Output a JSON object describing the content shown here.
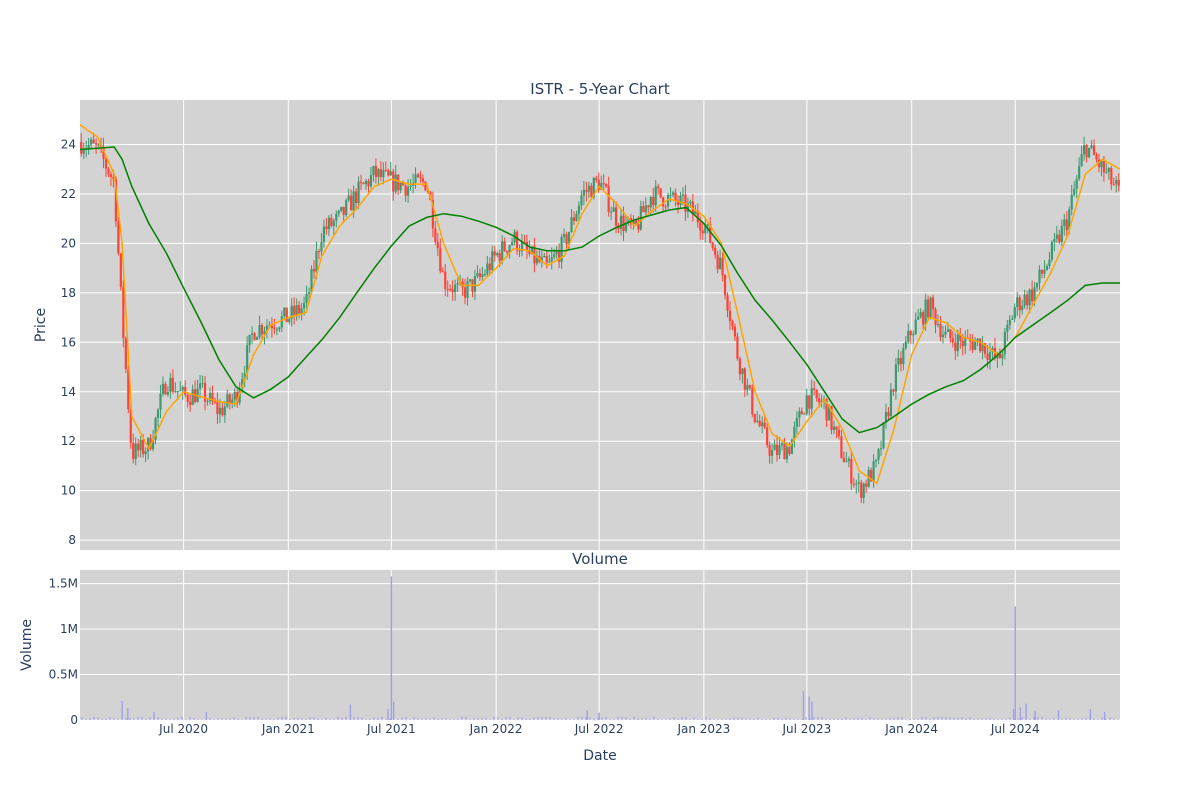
{
  "chart_data": [
    {
      "type": "candlestick",
      "title": "ISTR - 5-Year Chart",
      "xlabel": "",
      "ylabel": "Price",
      "ylim": [
        7.6,
        25.8
      ],
      "yticks": [
        8,
        10,
        12,
        14,
        16,
        18,
        20,
        22,
        24
      ],
      "xlim": [
        "2020-01-01",
        "2025-01-01"
      ],
      "xticks": [
        "2020-07-01",
        "2021-01-01",
        "2021-07-01",
        "2022-01-01",
        "2022-07-01",
        "2023-01-01",
        "2023-07-01",
        "2024-01-01",
        "2024-07-01"
      ],
      "grid": true,
      "plot_bg": "#d3d3d3",
      "colors": {
        "up": "#3d9970",
        "down": "#ff4136",
        "ma_short": "#ffa500",
        "ma_long": "#008000"
      },
      "series": [
        {
          "kind": "close",
          "x": [
            "2020-01-01",
            "2020-02-01",
            "2020-03-01",
            "2020-03-15",
            "2020-04-01",
            "2020-05-01",
            "2020-06-01",
            "2020-07-01",
            "2020-08-01",
            "2020-09-01",
            "2020-10-01",
            "2020-11-01",
            "2020-12-01",
            "2021-01-01",
            "2021-02-01",
            "2021-03-01",
            "2021-04-01",
            "2021-05-01",
            "2021-06-01",
            "2021-07-01",
            "2021-08-01",
            "2021-09-01",
            "2021-10-01",
            "2021-11-01",
            "2021-12-01",
            "2022-01-01",
            "2022-02-01",
            "2022-03-01",
            "2022-04-01",
            "2022-05-01",
            "2022-06-01",
            "2022-07-01",
            "2022-08-01",
            "2022-09-01",
            "2022-10-01",
            "2022-11-01",
            "2022-12-01",
            "2023-01-01",
            "2023-02-01",
            "2023-03-01",
            "2023-04-01",
            "2023-05-01",
            "2023-06-01",
            "2023-07-01",
            "2023-08-01",
            "2023-09-01",
            "2023-10-01",
            "2023-11-01",
            "2023-12-01",
            "2024-01-01",
            "2024-02-01",
            "2024-03-01",
            "2024-04-01",
            "2024-05-01",
            "2024-06-01",
            "2024-07-01",
            "2024-08-01",
            "2024-09-01",
            "2024-10-01",
            "2024-11-01",
            "2024-12-01",
            "2025-01-01"
          ],
          "values": [
            24.1,
            23.8,
            22.5,
            17.0,
            11.5,
            11.8,
            14.5,
            13.8,
            14.0,
            13.2,
            13.8,
            16.5,
            16.8,
            17.0,
            17.5,
            20.5,
            21.0,
            22.0,
            22.8,
            22.5,
            22.3,
            22.5,
            18.5,
            18.0,
            18.5,
            19.5,
            20.2,
            19.5,
            19.0,
            20.0,
            22.0,
            22.5,
            21.0,
            20.5,
            22.0,
            21.8,
            21.5,
            20.8,
            19.0,
            15.5,
            13.0,
            11.5,
            11.8,
            13.8,
            13.5,
            11.5,
            10.0,
            11.0,
            14.5,
            16.5,
            17.5,
            16.2,
            16.0,
            16.0,
            15.2,
            17.5,
            18.0,
            19.5,
            21.0,
            24.0,
            23.0,
            22.0
          ]
        },
        {
          "kind": "ma_short",
          "x": [
            "2020-01-01",
            "2020-02-01",
            "2020-03-01",
            "2020-03-15",
            "2020-04-01",
            "2020-05-01",
            "2020-06-01",
            "2020-07-01",
            "2020-08-01",
            "2020-09-01",
            "2020-10-01",
            "2020-11-01",
            "2020-12-01",
            "2021-01-01",
            "2021-02-01",
            "2021-03-01",
            "2021-04-01",
            "2021-05-01",
            "2021-06-01",
            "2021-07-01",
            "2021-08-01",
            "2021-09-01",
            "2021-10-01",
            "2021-11-01",
            "2021-12-01",
            "2022-01-01",
            "2022-02-01",
            "2022-03-01",
            "2022-04-01",
            "2022-05-01",
            "2022-06-01",
            "2022-07-01",
            "2022-08-01",
            "2022-09-01",
            "2022-10-01",
            "2022-11-01",
            "2022-12-01",
            "2023-01-01",
            "2023-02-01",
            "2023-03-01",
            "2023-04-01",
            "2023-05-01",
            "2023-06-01",
            "2023-07-01",
            "2023-08-01",
            "2023-09-01",
            "2023-10-01",
            "2023-11-01",
            "2023-12-01",
            "2024-01-01",
            "2024-02-01",
            "2024-03-01",
            "2024-04-01",
            "2024-05-01",
            "2024-06-01",
            "2024-07-01",
            "2024-08-01",
            "2024-09-01",
            "2024-10-01",
            "2024-11-01",
            "2024-12-01",
            "2025-01-01"
          ],
          "values": [
            24.8,
            24.3,
            22.8,
            20.0,
            13.0,
            11.7,
            13.2,
            14.0,
            13.8,
            13.6,
            13.5,
            15.5,
            16.7,
            17.0,
            17.2,
            19.5,
            20.7,
            21.4,
            22.3,
            22.6,
            22.4,
            22.4,
            20.0,
            18.3,
            18.3,
            19.0,
            19.8,
            19.7,
            19.1,
            19.5,
            21.2,
            22.3,
            21.6,
            20.7,
            21.3,
            21.8,
            21.6,
            21.1,
            20.0,
            17.2,
            14.0,
            12.3,
            11.8,
            12.8,
            13.7,
            12.5,
            10.8,
            10.3,
            12.5,
            15.5,
            17.0,
            16.8,
            16.2,
            16.0,
            15.5,
            16.2,
            17.5,
            18.8,
            20.3,
            22.8,
            23.4,
            23.0
          ]
        },
        {
          "kind": "ma_long",
          "x": [
            "2020-01-01",
            "2020-03-01",
            "2020-03-15",
            "2020-04-01",
            "2020-05-01",
            "2020-06-01",
            "2020-07-01",
            "2020-08-01",
            "2020-09-01",
            "2020-10-01",
            "2020-11-01",
            "2020-12-01",
            "2021-01-01",
            "2021-02-01",
            "2021-03-01",
            "2021-04-01",
            "2021-05-01",
            "2021-06-01",
            "2021-07-01",
            "2021-08-01",
            "2021-09-01",
            "2021-10-01",
            "2021-11-01",
            "2021-12-01",
            "2022-01-01",
            "2022-02-01",
            "2022-03-01",
            "2022-04-01",
            "2022-05-01",
            "2022-06-01",
            "2022-07-01",
            "2022-08-01",
            "2022-09-01",
            "2022-10-01",
            "2022-11-01",
            "2022-12-01",
            "2023-01-01",
            "2023-02-01",
            "2023-03-01",
            "2023-04-01",
            "2023-05-01",
            "2023-06-01",
            "2023-07-01",
            "2023-08-01",
            "2023-09-01",
            "2023-10-01",
            "2023-11-01",
            "2023-12-01",
            "2024-01-01",
            "2024-02-01",
            "2024-03-01",
            "2024-04-01",
            "2024-05-01",
            "2024-06-01",
            "2024-07-01",
            "2024-08-01",
            "2024-09-01",
            "2024-10-01",
            "2024-11-01",
            "2024-12-01",
            "2025-01-01"
          ],
          "values": [
            23.8,
            23.9,
            23.4,
            22.3,
            20.8,
            19.6,
            18.2,
            16.8,
            15.3,
            14.2,
            13.75,
            14.1,
            14.6,
            15.4,
            16.1,
            17.0,
            18.0,
            19.0,
            19.9,
            20.7,
            21.05,
            21.2,
            21.1,
            20.9,
            20.65,
            20.3,
            19.85,
            19.7,
            19.7,
            19.85,
            20.3,
            20.65,
            20.95,
            21.15,
            21.35,
            21.45,
            20.8,
            19.9,
            18.8,
            17.7,
            16.9,
            16.0,
            15.1,
            14.0,
            12.9,
            12.35,
            12.55,
            13.0,
            13.5,
            13.9,
            14.2,
            14.45,
            14.9,
            15.5,
            16.2,
            16.7,
            17.2,
            17.7,
            18.3,
            18.4,
            18.4
          ]
        }
      ]
    },
    {
      "type": "bar",
      "title": "Volume",
      "xlabel": "Date",
      "ylabel": "Volume",
      "ylim": [
        0,
        1650000
      ],
      "yticks": [
        0,
        500000,
        1000000,
        1500000
      ],
      "ytick_labels": [
        "0",
        "0.5M",
        "1M",
        "1.5M"
      ],
      "xticks": [
        "2020-07-01",
        "2021-01-01",
        "2021-07-01",
        "2022-01-01",
        "2022-07-01",
        "2023-01-01",
        "2023-07-01",
        "2024-01-01",
        "2024-07-01"
      ],
      "xtick_labels": [
        "Jul 2020",
        "Jan 2021",
        "Jul 2021",
        "Jan 2022",
        "Jul 2022",
        "Jan 2023",
        "Jul 2023",
        "Jan 2024",
        "Jul 2024"
      ],
      "grid": true,
      "plot_bg": "#d3d3d3",
      "bar_color": "#a0a0e6",
      "x": [
        "2020-03-15",
        "2020-03-25",
        "2020-05-10",
        "2020-08-10",
        "2021-04-20",
        "2021-06-25",
        "2021-07-01",
        "2021-07-05",
        "2022-06-10",
        "2022-07-01",
        "2023-06-25",
        "2023-07-05",
        "2023-07-10",
        "2024-06-28",
        "2024-07-01",
        "2024-07-10",
        "2024-07-20",
        "2024-08-05",
        "2024-09-15",
        "2024-11-10",
        "2024-12-05"
      ],
      "values": [
        210000,
        130000,
        90000,
        90000,
        170000,
        120000,
        1580000,
        200000,
        110000,
        80000,
        320000,
        260000,
        200000,
        120000,
        1250000,
        140000,
        180000,
        100000,
        110000,
        120000,
        90000
      ]
    }
  ]
}
